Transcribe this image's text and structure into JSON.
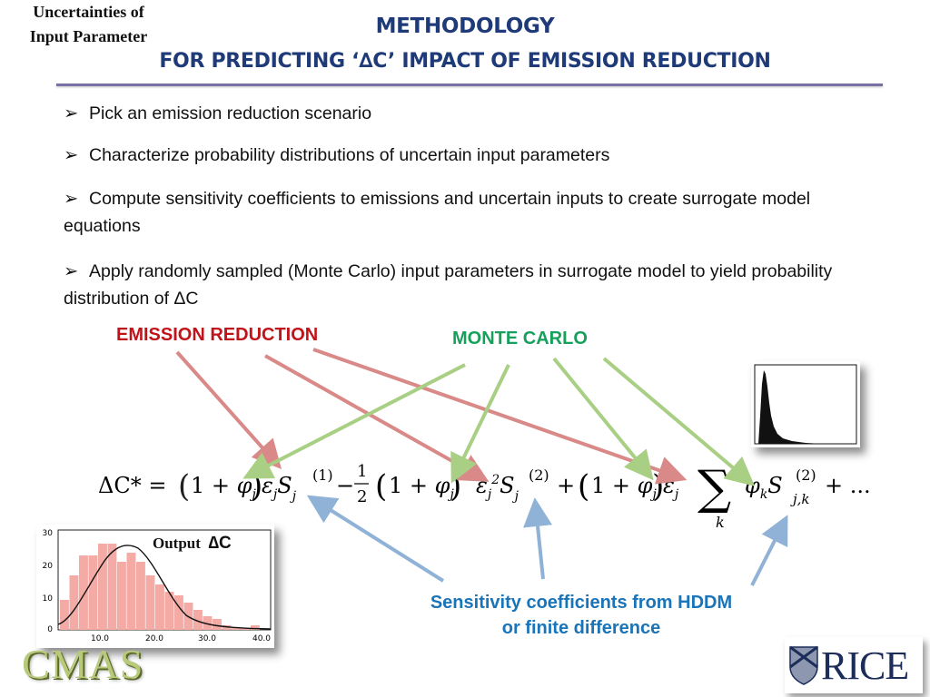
{
  "title": {
    "line1": "METHODOLOGY",
    "line2": "FOR PREDICTING ‘∆C’ IMPACT OF EMISSION REDUCTION"
  },
  "bullets": [
    {
      "marker": "➢",
      "text": "Pick an emission reduction scenario"
    },
    {
      "marker": "➢",
      "text": "Characterize probability distributions of uncertain input parameters"
    },
    {
      "marker": "➢",
      "text": "Compute sensitivity coefficients to emissions and uncertain inputs to create surrogate model equations"
    },
    {
      "marker": "➢",
      "text": "Apply randomly sampled (Monte Carlo) input parameters in surrogate model to yield probability distribution of ΔC"
    }
  ],
  "labels": {
    "emission_reduction": "EMISSION REDUCTION",
    "monte_carlo": "MONTE CARLO",
    "uncertainties_line1": "Uncertainties of",
    "uncertainties_line2": "Input Parameter",
    "sensitivity_line1": "Sensitivity coefficients from HDDM",
    "sensitivity_line2": "or finite difference",
    "output": "Output",
    "output_symbol": "∆C"
  },
  "equation": {
    "lhs": "ΔC* =",
    "term1_symbol": "S",
    "term1_sup": "(1)",
    "frac_num": "1",
    "frac_den": "2",
    "term2_sup": "(2)",
    "sum_index": "k",
    "term3_sub": "j,k",
    "tail": "+ ..."
  },
  "output_chart": {
    "y_ticks": [
      "30",
      "20",
      "10",
      "0"
    ],
    "x_ticks": [
      "10.0",
      "20.0",
      "30.0",
      "40.0"
    ]
  },
  "logos": {
    "cmas": "CMAS",
    "rice": "RICE"
  },
  "colors": {
    "title": "#1f3a78",
    "emission": "#c0131a",
    "monte_carlo": "#16a05c",
    "sensitivity": "#1a74b8",
    "red_arrow": "#d98a88",
    "green_arrow": "#a9cf84",
    "blue_arrow": "#8fb2d6",
    "histogram_bar": "#f4aaa5"
  }
}
